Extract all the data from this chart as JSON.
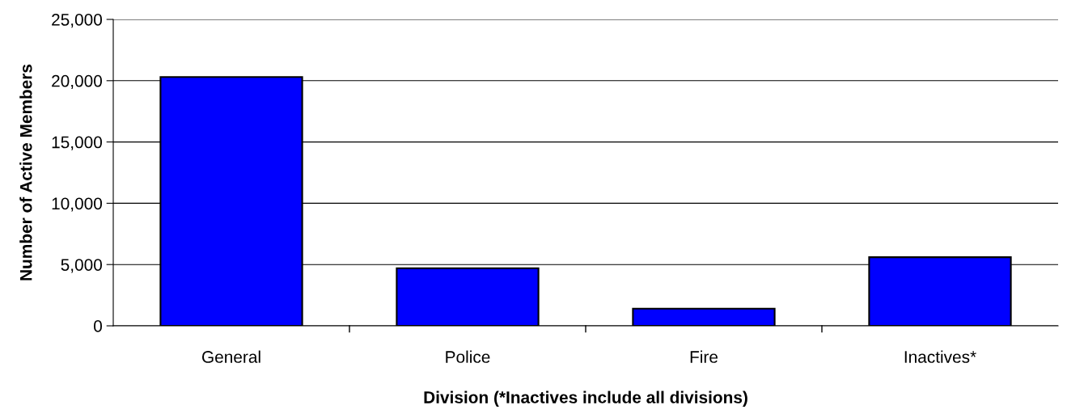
{
  "chart_data": {
    "type": "bar",
    "xlabel": "Division (*Inactives include all divisions)",
    "ylabel": "Number of Active Members",
    "categories": [
      "General",
      "Police",
      "Fire",
      "Inactives*"
    ],
    "values": [
      20300,
      4700,
      1400,
      5600
    ],
    "color": "#0000ff",
    "ylim": [
      0,
      25000
    ],
    "yticks": [
      {
        "value": 0,
        "label": "0"
      },
      {
        "value": 5000,
        "label": "5,000"
      },
      {
        "value": 10000,
        "label": "10,000"
      },
      {
        "value": 15000,
        "label": "15,000"
      },
      {
        "value": 20000,
        "label": "20,000"
      },
      {
        "value": 25000,
        "label": "25,000"
      }
    ],
    "grid": "y",
    "legend": false
  }
}
